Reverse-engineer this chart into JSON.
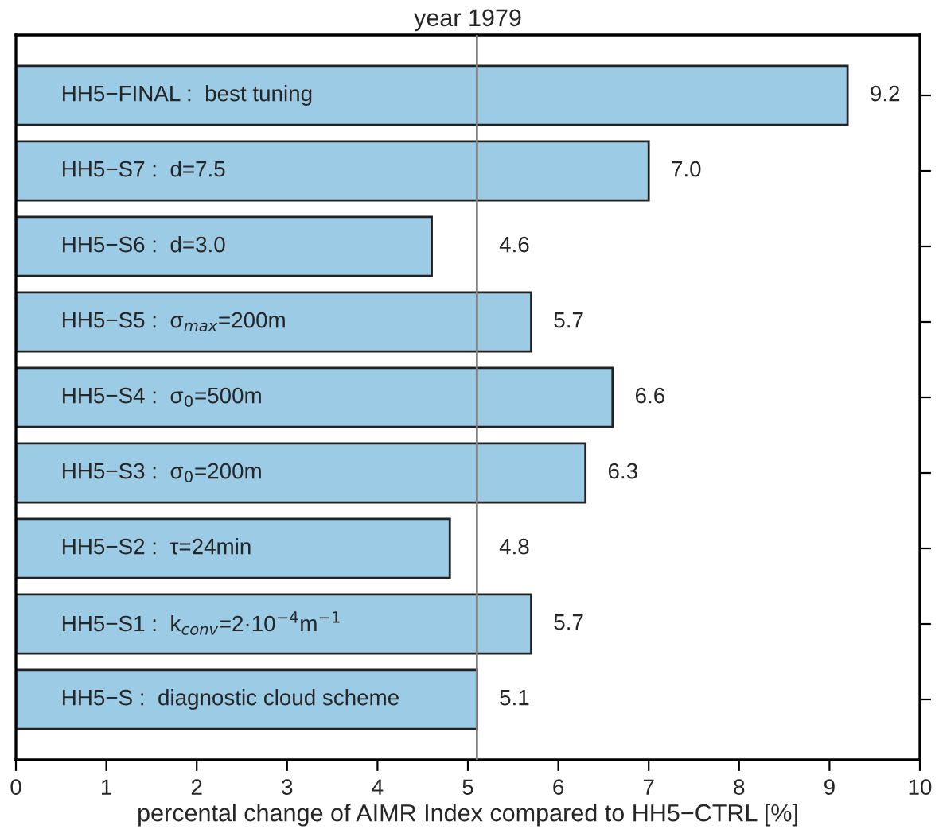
{
  "chart_data": {
    "type": "bar",
    "orientation": "horizontal",
    "title": "year 1979",
    "xlabel": "percental change of AIMR Index compared to HH5−CTRL [%]",
    "categories": [
      "HH5−FINAL :  best tuning",
      "HH5−S7 :  d=7.5",
      "HH5−S6 :  d=3.0",
      "HH5−S5 :  σ$_{max}$=200m",
      "HH5−S4 :  σ$_{0}$=500m",
      "HH5−S3 :  σ$_{0}$=200m",
      "HH5−S2 :  τ=24min",
      "HH5−S1 :  k$_{conv}$=2·10$^{−4}$m$^{−1}$",
      "HH5−S :  diagnostic cloud scheme"
    ],
    "values": [
      9.2,
      7.0,
      4.6,
      5.7,
      6.6,
      6.3,
      4.8,
      5.7,
      5.1
    ],
    "color": "#9ccbe6",
    "value_labels": [
      "9.2",
      "7.0",
      "4.6",
      "5.7",
      "6.6",
      "6.3",
      "4.8",
      "5.7",
      "5.1"
    ],
    "xlim": [
      0,
      10
    ],
    "xticks": [
      0,
      1,
      2,
      3,
      4,
      5,
      6,
      7,
      8,
      9,
      10
    ],
    "ref_lines": [
      {
        "axis": "x",
        "value": 5.1,
        "color": "#808080"
      }
    ],
    "grid": false,
    "legend": false
  }
}
